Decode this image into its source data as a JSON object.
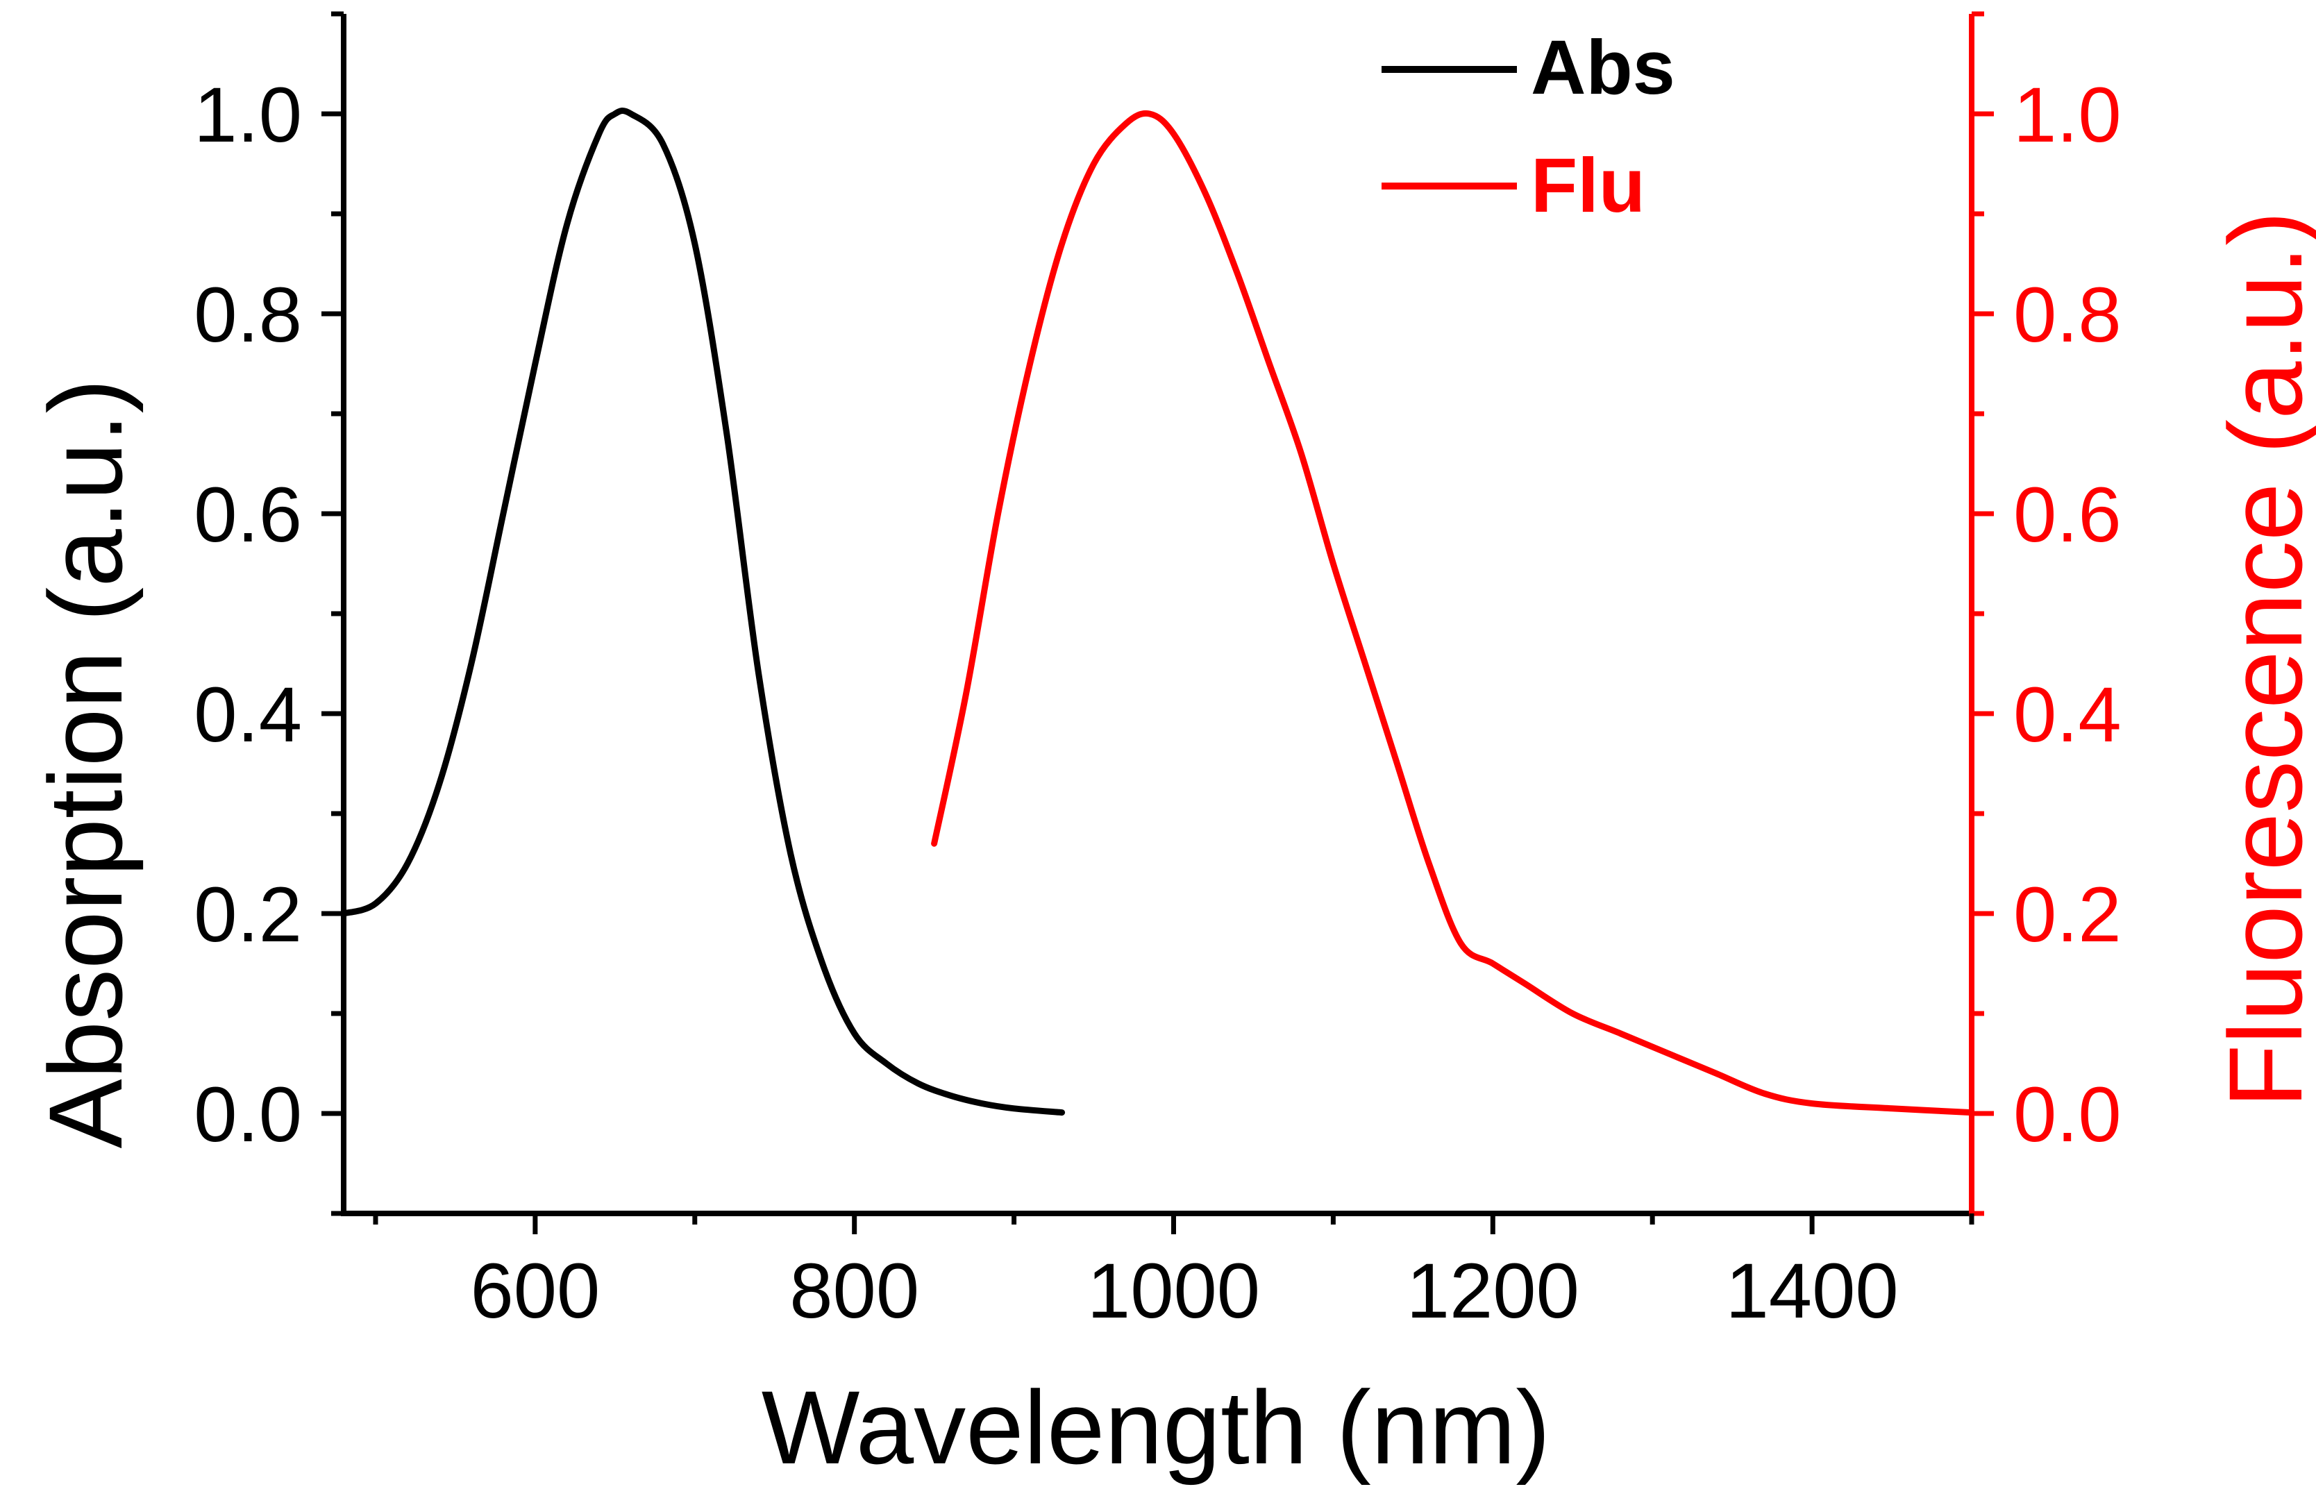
{
  "chart_data": {
    "type": "line",
    "xlabel": "Wavelength (nm)",
    "ylabel_left": "Absorption (a.u.)",
    "ylabel_right": "Fluorescence (a.u.)",
    "xlim": [
      480,
      1500
    ],
    "ylim": [
      -0.1,
      1.1
    ],
    "x_ticks": [
      600,
      800,
      1000,
      1200,
      1400
    ],
    "y_ticks": [
      0.0,
      0.2,
      0.4,
      0.6,
      0.8,
      1.0
    ],
    "x_tick_labels": [
      "600",
      "800",
      "1000",
      "1200",
      "1400"
    ],
    "y_tick_labels": [
      "0.0",
      "0.2",
      "0.4",
      "0.6",
      "0.8",
      "1.0"
    ],
    "grid": false,
    "legend_position": "top-right",
    "colors": {
      "Abs": "#000000",
      "Flu": "#ff0000"
    },
    "series": [
      {
        "name": "Abs",
        "axis": "left",
        "color": "#000000",
        "x": [
          480,
          500,
          520,
          540,
          560,
          580,
          600,
          620,
          640,
          650,
          660,
          680,
          700,
          720,
          740,
          760,
          780,
          800,
          820,
          840,
          860,
          880,
          900,
          930
        ],
        "y": [
          0.2,
          0.21,
          0.25,
          0.33,
          0.45,
          0.6,
          0.75,
          0.89,
          0.98,
          1.0,
          1.0,
          0.97,
          0.87,
          0.68,
          0.44,
          0.26,
          0.15,
          0.08,
          0.05,
          0.03,
          0.018,
          0.01,
          0.005,
          0.001
        ]
      },
      {
        "name": "Flu",
        "axis": "right",
        "color": "#ff0000",
        "x": [
          850,
          870,
          890,
          910,
          930,
          950,
          970,
          985,
          1000,
          1020,
          1040,
          1060,
          1080,
          1100,
          1120,
          1140,
          1160,
          1180,
          1200,
          1220,
          1250,
          1280,
          1310,
          1340,
          1370,
          1400,
          1450,
          1500
        ],
        "y": [
          0.27,
          0.42,
          0.6,
          0.75,
          0.87,
          0.95,
          0.99,
          1.0,
          0.98,
          0.92,
          0.84,
          0.75,
          0.66,
          0.55,
          0.45,
          0.35,
          0.25,
          0.17,
          0.15,
          0.13,
          0.1,
          0.08,
          0.06,
          0.04,
          0.02,
          0.01,
          0.005,
          0.001
        ]
      }
    ]
  }
}
